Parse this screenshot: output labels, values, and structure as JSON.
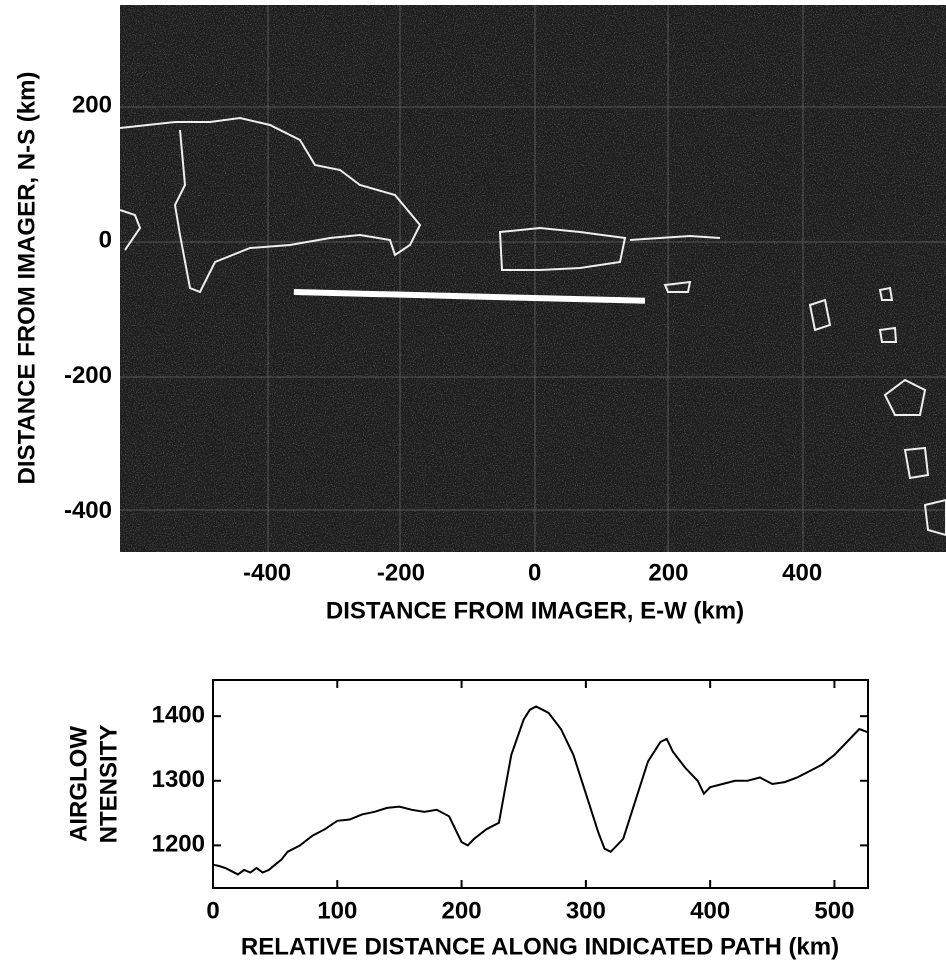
{
  "chart_data": [
    {
      "type": "image",
      "xlabel": "DISTANCE FROM IMAGER, E-W (km)",
      "ylabel": "DISTANCE FROM IMAGER, N-S (km)",
      "xlim": [
        -620,
        615
      ],
      "ylim": [
        -460,
        350
      ],
      "xticks": [
        -400,
        -200,
        0,
        200,
        400
      ],
      "yticks": [
        -400,
        -200,
        0,
        200
      ],
      "x": [
        -360,
        165
      ],
      "y": [
        -75,
        -88
      ]
    },
    {
      "type": "line",
      "xlabel": "RELATIVE DISTANCE ALONG INDICATED PATH (km)",
      "ylabel": [
        "AIRGLOW",
        "NTENSITY"
      ],
      "xlim": [
        0,
        527
      ],
      "ylim": [
        1134,
        1456
      ],
      "xticks": [
        0,
        100,
        200,
        300,
        400,
        500
      ],
      "yticks": [
        1200,
        1300,
        1400
      ],
      "color": "#000000",
      "x": [
        0,
        5,
        10,
        15,
        20,
        25,
        30,
        35,
        40,
        45,
        50,
        55,
        60,
        70,
        80,
        90,
        100,
        110,
        120,
        130,
        140,
        150,
        160,
        170,
        180,
        190,
        200,
        205,
        210,
        220,
        230,
        240,
        250,
        255,
        260,
        265,
        270,
        280,
        290,
        300,
        310,
        315,
        320,
        330,
        340,
        350,
        360,
        365,
        370,
        380,
        390,
        395,
        400,
        410,
        420,
        430,
        440,
        450,
        460,
        470,
        480,
        490,
        500,
        510,
        520,
        527
      ],
      "values": [
        1170,
        1168,
        1165,
        1160,
        1155,
        1162,
        1158,
        1165,
        1158,
        1162,
        1170,
        1178,
        1190,
        1200,
        1215,
        1225,
        1238,
        1240,
        1248,
        1252,
        1258,
        1260,
        1255,
        1252,
        1255,
        1245,
        1205,
        1200,
        1210,
        1225,
        1235,
        1340,
        1395,
        1410,
        1415,
        1410,
        1405,
        1380,
        1340,
        1280,
        1220,
        1195,
        1190,
        1210,
        1270,
        1330,
        1360,
        1365,
        1345,
        1320,
        1300,
        1280,
        1290,
        1295,
        1300,
        1300,
        1305,
        1295,
        1298,
        1305,
        1315,
        1325,
        1340,
        1360,
        1380,
        1375
      ]
    }
  ]
}
